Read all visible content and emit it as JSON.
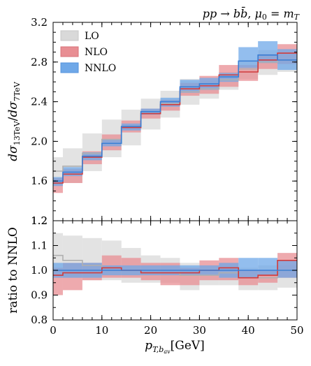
{
  "chart_data": {
    "type": "line",
    "title": "pp → bb̄, μ₀ = m_T",
    "xlabel": "p_T,b_av [GeV]",
    "x_edges": [
      0,
      2,
      6,
      10,
      14,
      18,
      22,
      26,
      30,
      34,
      38,
      42,
      46,
      50
    ],
    "xlim": [
      0,
      50
    ],
    "xticks": [
      "0",
      "10",
      "20",
      "30",
      "40",
      "50"
    ],
    "main": {
      "ylabel": "dσ_13TeV / dσ_7TeV",
      "ylim": [
        1.2,
        3.2
      ],
      "yticks": [
        "1.2",
        "1.6",
        "2.0",
        "2.4",
        "2.8",
        "3.2"
      ],
      "series": [
        {
          "name": "LO",
          "color": "#b0b0b0",
          "fill": "#d9d9d9",
          "central": [
            1.7,
            1.75,
            1.88,
            2.02,
            2.15,
            2.28,
            2.38,
            2.5,
            2.53,
            2.62,
            2.73,
            2.8,
            2.82
          ],
          "upper": [
            1.84,
            1.93,
            2.08,
            2.22,
            2.32,
            2.43,
            2.51,
            2.63,
            2.61,
            2.7,
            2.82,
            2.92,
            2.9
          ],
          "lower": [
            1.56,
            1.58,
            1.7,
            1.84,
            1.96,
            2.12,
            2.24,
            2.37,
            2.43,
            2.52,
            2.63,
            2.67,
            2.7
          ]
        },
        {
          "name": "NLO",
          "color": "#d13b3b",
          "fill": "#e88e93",
          "central": [
            1.58,
            1.67,
            1.84,
            1.98,
            2.14,
            2.28,
            2.37,
            2.53,
            2.56,
            2.67,
            2.7,
            2.82,
            2.89
          ],
          "upper": [
            1.63,
            1.72,
            1.9,
            2.07,
            2.21,
            2.33,
            2.42,
            2.59,
            2.66,
            2.77,
            2.77,
            2.88,
            2.98
          ],
          "lower": [
            1.48,
            1.58,
            1.77,
            1.91,
            2.09,
            2.23,
            2.31,
            2.46,
            2.48,
            2.55,
            2.61,
            2.73,
            2.78
          ]
        },
        {
          "name": "NNLO",
          "color": "#3a7fd5",
          "fill": "#6fa8e8",
          "central": [
            1.6,
            1.69,
            1.85,
            1.98,
            2.15,
            2.3,
            2.4,
            2.55,
            2.58,
            2.65,
            2.81,
            2.87,
            2.82
          ],
          "upper": [
            1.64,
            1.74,
            1.89,
            2.02,
            2.18,
            2.33,
            2.44,
            2.62,
            2.64,
            2.69,
            2.95,
            3.01,
            2.93
          ],
          "lower": [
            1.55,
            1.65,
            1.81,
            1.95,
            2.11,
            2.27,
            2.35,
            2.49,
            2.52,
            2.6,
            2.74,
            2.79,
            2.72
          ]
        }
      ]
    },
    "ratio": {
      "ylabel": "ratio to NNLO",
      "ylim": [
        0.8,
        1.2
      ],
      "yticks": [
        "0.8",
        "0.9",
        "1.0",
        "1.1",
        "1.2"
      ],
      "series": [
        {
          "name": "LO",
          "color": "#b0b0b0",
          "fill": "#d9d9d9",
          "central": [
            1.06,
            1.04,
            1.02,
            1.01,
            1.0,
            0.99,
            0.99,
            0.98,
            0.98,
            0.99,
            0.97,
            0.97,
            1.0
          ],
          "upper": [
            1.15,
            1.14,
            1.13,
            1.12,
            1.09,
            1.06,
            1.05,
            1.03,
            1.02,
            1.03,
            1.01,
            1.02,
            1.02
          ],
          "lower": [
            0.99,
            0.97,
            0.96,
            0.96,
            0.95,
            0.95,
            0.95,
            0.92,
            0.94,
            0.94,
            0.92,
            0.92,
            0.93
          ]
        },
        {
          "name": "NLO",
          "color": "#d13b3b",
          "fill": "#e88e93",
          "central": [
            0.98,
            0.99,
            0.99,
            1.01,
            1.0,
            0.99,
            0.99,
            0.99,
            1.0,
            1.01,
            0.97,
            0.98,
            1.04
          ],
          "upper": [
            1.01,
            1.03,
            1.03,
            1.06,
            1.05,
            1.03,
            1.03,
            1.01,
            1.04,
            1.05,
            1.0,
            1.0,
            1.07
          ],
          "lower": [
            0.9,
            0.92,
            0.96,
            0.97,
            0.97,
            0.96,
            0.94,
            0.94,
            0.96,
            0.96,
            0.94,
            0.95,
            0.97
          ]
        },
        {
          "name": "NNLO",
          "color": "#3a7fd5",
          "fill": "#6fa8e8",
          "central": [
            1.0,
            1.0,
            1.0,
            1.0,
            1.0,
            1.0,
            1.0,
            1.0,
            1.0,
            1.0,
            1.0,
            1.0,
            1.0
          ],
          "upper": [
            1.03,
            1.03,
            1.03,
            1.02,
            1.02,
            1.02,
            1.02,
            1.02,
            1.02,
            1.03,
            1.05,
            1.05,
            1.04
          ],
          "lower": [
            0.97,
            0.97,
            0.97,
            0.98,
            0.98,
            0.98,
            0.98,
            0.98,
            0.98,
            0.97,
            0.97,
            0.98,
            0.97
          ]
        }
      ]
    },
    "legend": {
      "placement": "top-left",
      "entries": [
        "LO",
        "NLO",
        "NNLO"
      ]
    }
  }
}
